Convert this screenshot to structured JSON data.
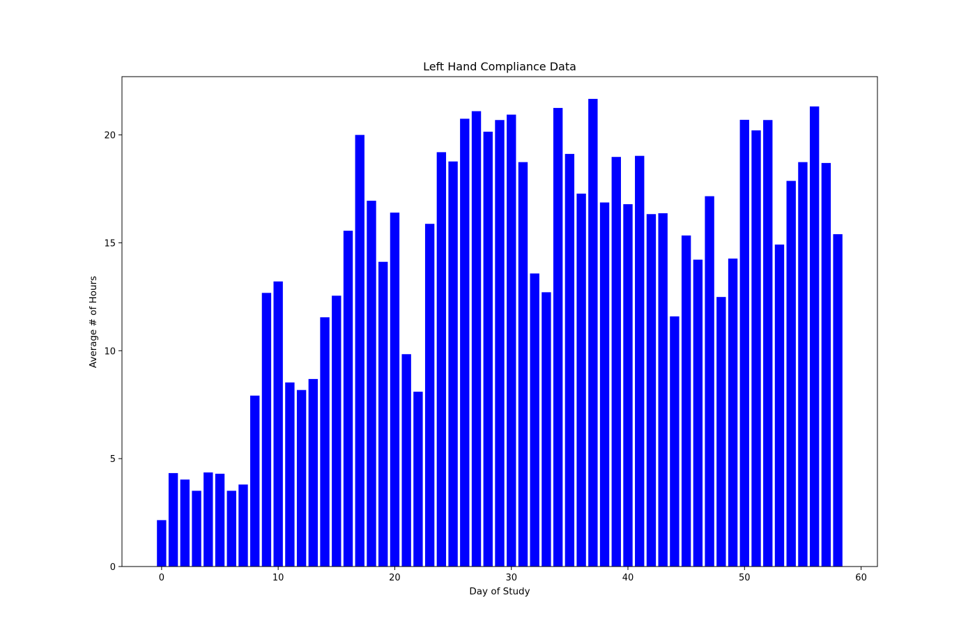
{
  "chart_data": {
    "type": "bar",
    "title": "Left Hand Compliance Data",
    "xlabel": "Day of Study",
    "ylabel": "Average # of Hours",
    "xlim": [
      -3.4,
      61.4
    ],
    "ylim": [
      0,
      22.7
    ],
    "xticks": [
      0,
      10,
      20,
      30,
      40,
      50,
      60
    ],
    "yticks": [
      0,
      5,
      10,
      15,
      20
    ],
    "grid": false,
    "legend": "none",
    "bar_color": "#0000ff",
    "bar_width": 0.8,
    "x": [
      0,
      1,
      2,
      3,
      4,
      5,
      6,
      7,
      8,
      9,
      10,
      11,
      12,
      13,
      14,
      15,
      16,
      17,
      18,
      19,
      20,
      21,
      22,
      23,
      24,
      25,
      26,
      27,
      28,
      29,
      30,
      31,
      32,
      33,
      34,
      35,
      36,
      37,
      38,
      39,
      40,
      41,
      42,
      43,
      44,
      45,
      46,
      47,
      48,
      49,
      50,
      51,
      52,
      53,
      54,
      55,
      56,
      57,
      58
    ],
    "values": [
      2.15,
      4.33,
      4.03,
      3.51,
      4.36,
      4.3,
      3.51,
      3.8,
      7.92,
      12.68,
      13.21,
      8.53,
      8.18,
      8.69,
      11.55,
      12.55,
      15.56,
      20.0,
      16.95,
      14.12,
      16.4,
      9.84,
      8.1,
      15.88,
      19.2,
      18.77,
      20.75,
      21.1,
      20.15,
      20.69,
      20.94,
      18.74,
      13.58,
      12.71,
      21.25,
      19.12,
      17.28,
      21.67,
      16.87,
      18.98,
      16.79,
      19.03,
      16.33,
      16.37,
      11.59,
      15.34,
      14.22,
      17.16,
      12.49,
      14.27,
      20.7,
      20.21,
      20.69,
      14.92,
      17.87,
      18.74,
      21.32,
      18.7,
      15.4
    ]
  }
}
